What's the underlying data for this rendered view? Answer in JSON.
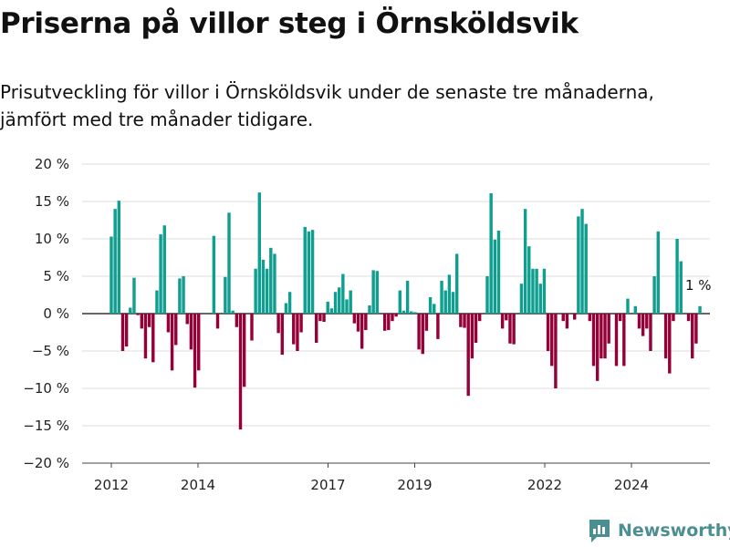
{
  "header": {
    "title": "Priserna på villor steg i Örnsköldsvik",
    "subtitle": "Prisutveckling för villor i Örnsköldsvik under de senaste tre månaderna, jämfört med tre månader tidigare."
  },
  "brand": {
    "name": "Newsworthy",
    "icon": "newsworthy-logo-icon"
  },
  "colors": {
    "positive": "#0f9e8f",
    "negative": "#960038",
    "grid": "#dddddd",
    "zero_line": "#333333",
    "brand": "#4b8f93"
  },
  "chart_data": {
    "type": "bar",
    "title": "Priserna på villor steg i Örnsköldsvik",
    "ylim": [
      -20,
      20
    ],
    "y_ticks": [
      -20,
      -15,
      -10,
      -5,
      0,
      5,
      10,
      15,
      20
    ],
    "y_tick_labels": [
      "−20 %",
      "−15 %",
      "−10 %",
      "−5 %",
      "0 %",
      "5 %",
      "10 %",
      "15 %",
      "20 %"
    ],
    "x_ticks": [
      2012,
      2014,
      2017,
      2019,
      2022,
      2024
    ],
    "x_tick_labels": [
      "2012",
      "2014",
      "2017",
      "2019",
      "2022",
      "2024"
    ],
    "x_start": 2012,
    "x_end": 2025.58,
    "grid": true,
    "last_value_label": "1 %",
    "values": [
      10.3,
      14,
      15.1,
      -5,
      -4.4,
      0.8,
      4.8,
      -0.2,
      -2,
      -6,
      -1.8,
      -6.5,
      3.1,
      10.6,
      11.8,
      -2.5,
      -7.6,
      -4.2,
      4.7,
      5,
      -1.4,
      -4.8,
      -9.9,
      -7.6,
      0,
      0,
      0,
      10.4,
      -2,
      0,
      4.9,
      13.5,
      0.4,
      -1.8,
      -15.5,
      -9.8,
      0,
      -3.6,
      6,
      16.2,
      7.2,
      6,
      8.8,
      8,
      -2.6,
      -5.5,
      1.4,
      2.9,
      -4.1,
      -5,
      -2.5,
      11.6,
      11,
      11.2,
      -3.9,
      -1,
      -1.1,
      1.6,
      0.7,
      2.9,
      3.5,
      5.3,
      1.9,
      3.1,
      -1.3,
      -2.4,
      -4.7,
      -2.2,
      1.1,
      5.8,
      5.7,
      0,
      -2.3,
      -2.2,
      -1,
      -0.4,
      3.1,
      0.4,
      4.4,
      0.3,
      0.2,
      -4.8,
      -5.4,
      -2.3,
      2.2,
      1.3,
      -3.4,
      4.4,
      3.1,
      5.2,
      2.9,
      8,
      -1.8,
      -1.9,
      -11,
      -6,
      -3.9,
      -1,
      0,
      5,
      16.1,
      9.9,
      11.1,
      -2,
      -0.9,
      -4,
      -4.1,
      0,
      4,
      14,
      9,
      6,
      6,
      4,
      6,
      -5,
      -7,
      -10,
      0,
      -1,
      -2,
      0,
      -0.8,
      13,
      14,
      12,
      -1,
      -7,
      -9,
      -6,
      -6,
      -4,
      0,
      -7,
      -1,
      -7,
      2,
      0,
      1,
      -2,
      -3,
      -2,
      -5,
      5,
      11,
      0,
      -6,
      -8,
      -1,
      10,
      7,
      0,
      -1,
      -6,
      -4,
      1
    ]
  }
}
